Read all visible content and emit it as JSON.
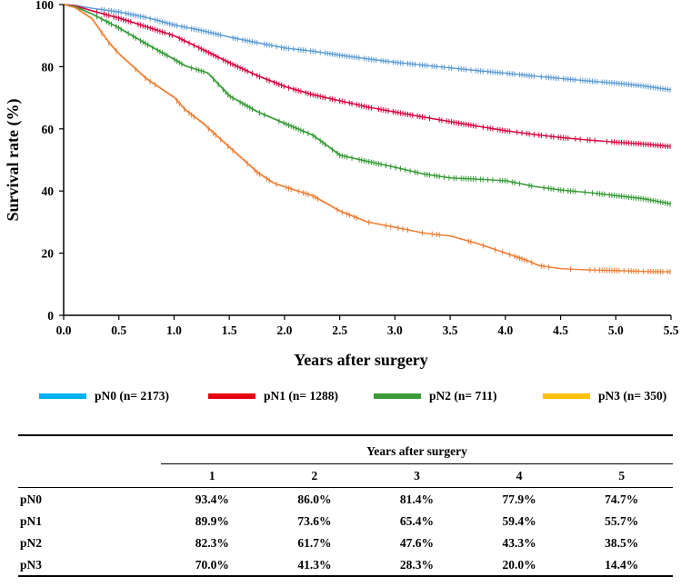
{
  "chart_data": {
    "type": "line",
    "title": "",
    "xlabel": "Years after surgery",
    "ylabel": "Survival rate (%)",
    "xlim": [
      0,
      5.5
    ],
    "ylim": [
      0,
      100
    ],
    "xticks": [
      "0.0",
      "0.5",
      "1.0",
      "1.5",
      "2.0",
      "2.5",
      "3.0",
      "3.5",
      "4.0",
      "4.5",
      "5.0",
      "5.5"
    ],
    "yticks": [
      "0",
      "20",
      "40",
      "60",
      "80",
      "100"
    ],
    "grid": false,
    "series": [
      {
        "name": "pN0 (n= 2173)",
        "color": "#5b9bd5",
        "legend_color": "#00b0f0",
        "points": [
          [
            0,
            100
          ],
          [
            0.1,
            99.7
          ],
          [
            0.25,
            98.8
          ],
          [
            0.5,
            97.6
          ],
          [
            0.75,
            95.8
          ],
          [
            1.0,
            93.4
          ],
          [
            1.25,
            91.6
          ],
          [
            1.5,
            89.5
          ],
          [
            1.75,
            87.7
          ],
          [
            2.0,
            86.0
          ],
          [
            2.25,
            85.0
          ],
          [
            2.5,
            83.7
          ],
          [
            2.75,
            82.5
          ],
          [
            3.0,
            81.4
          ],
          [
            3.25,
            80.5
          ],
          [
            3.5,
            79.6
          ],
          [
            3.75,
            78.7
          ],
          [
            4.0,
            77.9
          ],
          [
            4.25,
            77.0
          ],
          [
            4.5,
            76.2
          ],
          [
            4.75,
            75.4
          ],
          [
            5.0,
            74.7
          ],
          [
            5.25,
            73.8
          ],
          [
            5.5,
            72.5
          ]
        ],
        "censor_density": 0.8
      },
      {
        "name": "pN1 (n= 1288)",
        "color": "#d6003e",
        "legend_color": "#e60012",
        "points": [
          [
            0,
            100
          ],
          [
            0.1,
            99.6
          ],
          [
            0.25,
            98.0
          ],
          [
            0.5,
            95.6
          ],
          [
            0.75,
            92.8
          ],
          [
            1.0,
            89.9
          ],
          [
            1.25,
            85.6
          ],
          [
            1.5,
            81.2
          ],
          [
            1.75,
            77.1
          ],
          [
            2.0,
            73.6
          ],
          [
            2.25,
            71.0
          ],
          [
            2.5,
            69.0
          ],
          [
            2.75,
            67.0
          ],
          [
            3.0,
            65.4
          ],
          [
            3.25,
            63.8
          ],
          [
            3.5,
            62.3
          ],
          [
            3.75,
            60.8
          ],
          [
            4.0,
            59.4
          ],
          [
            4.25,
            58.2
          ],
          [
            4.5,
            57.2
          ],
          [
            4.75,
            56.4
          ],
          [
            5.0,
            55.7
          ],
          [
            5.25,
            55.1
          ],
          [
            5.5,
            54.3
          ]
        ],
        "censor_density": 0.7
      },
      {
        "name": "pN2 (n= 711)",
        "color": "#339933",
        "legend_color": "#3a9b3a",
        "points": [
          [
            0,
            100
          ],
          [
            0.1,
            99.3
          ],
          [
            0.25,
            97.0
          ],
          [
            0.5,
            92.4
          ],
          [
            0.75,
            87.2
          ],
          [
            1.0,
            82.3
          ],
          [
            1.1,
            80.2
          ],
          [
            1.3,
            78.0
          ],
          [
            1.5,
            70.5
          ],
          [
            1.75,
            65.5
          ],
          [
            2.0,
            61.7
          ],
          [
            2.25,
            58.0
          ],
          [
            2.5,
            51.5
          ],
          [
            2.75,
            49.5
          ],
          [
            3.0,
            47.6
          ],
          [
            3.25,
            45.5
          ],
          [
            3.5,
            44.2
          ],
          [
            3.75,
            43.8
          ],
          [
            4.0,
            43.3
          ],
          [
            4.25,
            41.5
          ],
          [
            4.5,
            40.3
          ],
          [
            4.75,
            39.5
          ],
          [
            5.0,
            38.5
          ],
          [
            5.25,
            37.5
          ],
          [
            5.5,
            35.8
          ]
        ],
        "censor_density": 0.6
      },
      {
        "name": "pN3 (n= 350)",
        "color": "#ed7d31",
        "legend_color": "#ffc000",
        "points": [
          [
            0,
            100
          ],
          [
            0.1,
            99.0
          ],
          [
            0.25,
            95.5
          ],
          [
            0.4,
            88.0
          ],
          [
            0.5,
            84.0
          ],
          [
            0.75,
            76.0
          ],
          [
            1.0,
            70.0
          ],
          [
            1.1,
            66.0
          ],
          [
            1.25,
            62.0
          ],
          [
            1.5,
            54.0
          ],
          [
            1.75,
            46.0
          ],
          [
            1.9,
            42.5
          ],
          [
            2.0,
            41.3
          ],
          [
            2.25,
            38.5
          ],
          [
            2.5,
            33.5
          ],
          [
            2.75,
            30.0
          ],
          [
            3.0,
            28.3
          ],
          [
            3.25,
            26.5
          ],
          [
            3.5,
            25.5
          ],
          [
            3.75,
            23.0
          ],
          [
            4.0,
            20.0
          ],
          [
            4.2,
            17.5
          ],
          [
            4.3,
            16.0
          ],
          [
            4.5,
            15.0
          ],
          [
            4.75,
            14.6
          ],
          [
            5.0,
            14.4
          ],
          [
            5.25,
            14.1
          ],
          [
            5.5,
            14.0
          ]
        ],
        "censor_density": 0.35
      }
    ]
  },
  "legend": [
    {
      "label": "pN0 (n= 2173)",
      "color": "#00b0f0"
    },
    {
      "label": "pN1 (n= 1288)",
      "color": "#e60012"
    },
    {
      "label": "pN2 (n= 711)",
      "color": "#3a9b3a"
    },
    {
      "label": "pN3 (n= 350)",
      "color": "#ffc000"
    }
  ],
  "table": {
    "span_header": "Years after surgery",
    "year_headers": [
      "1",
      "2",
      "3",
      "4",
      "5"
    ],
    "rows": [
      {
        "label": "pN0",
        "values": [
          "93.4%",
          "86.0%",
          "81.4%",
          "77.9%",
          "74.7%"
        ]
      },
      {
        "label": "pN1",
        "values": [
          "89.9%",
          "73.6%",
          "65.4%",
          "59.4%",
          "55.7%"
        ]
      },
      {
        "label": "pN2",
        "values": [
          "82.3%",
          "61.7%",
          "47.6%",
          "43.3%",
          "38.5%"
        ]
      },
      {
        "label": "pN3",
        "values": [
          "70.0%",
          "41.3%",
          "28.3%",
          "20.0%",
          "14.4%"
        ]
      }
    ]
  }
}
